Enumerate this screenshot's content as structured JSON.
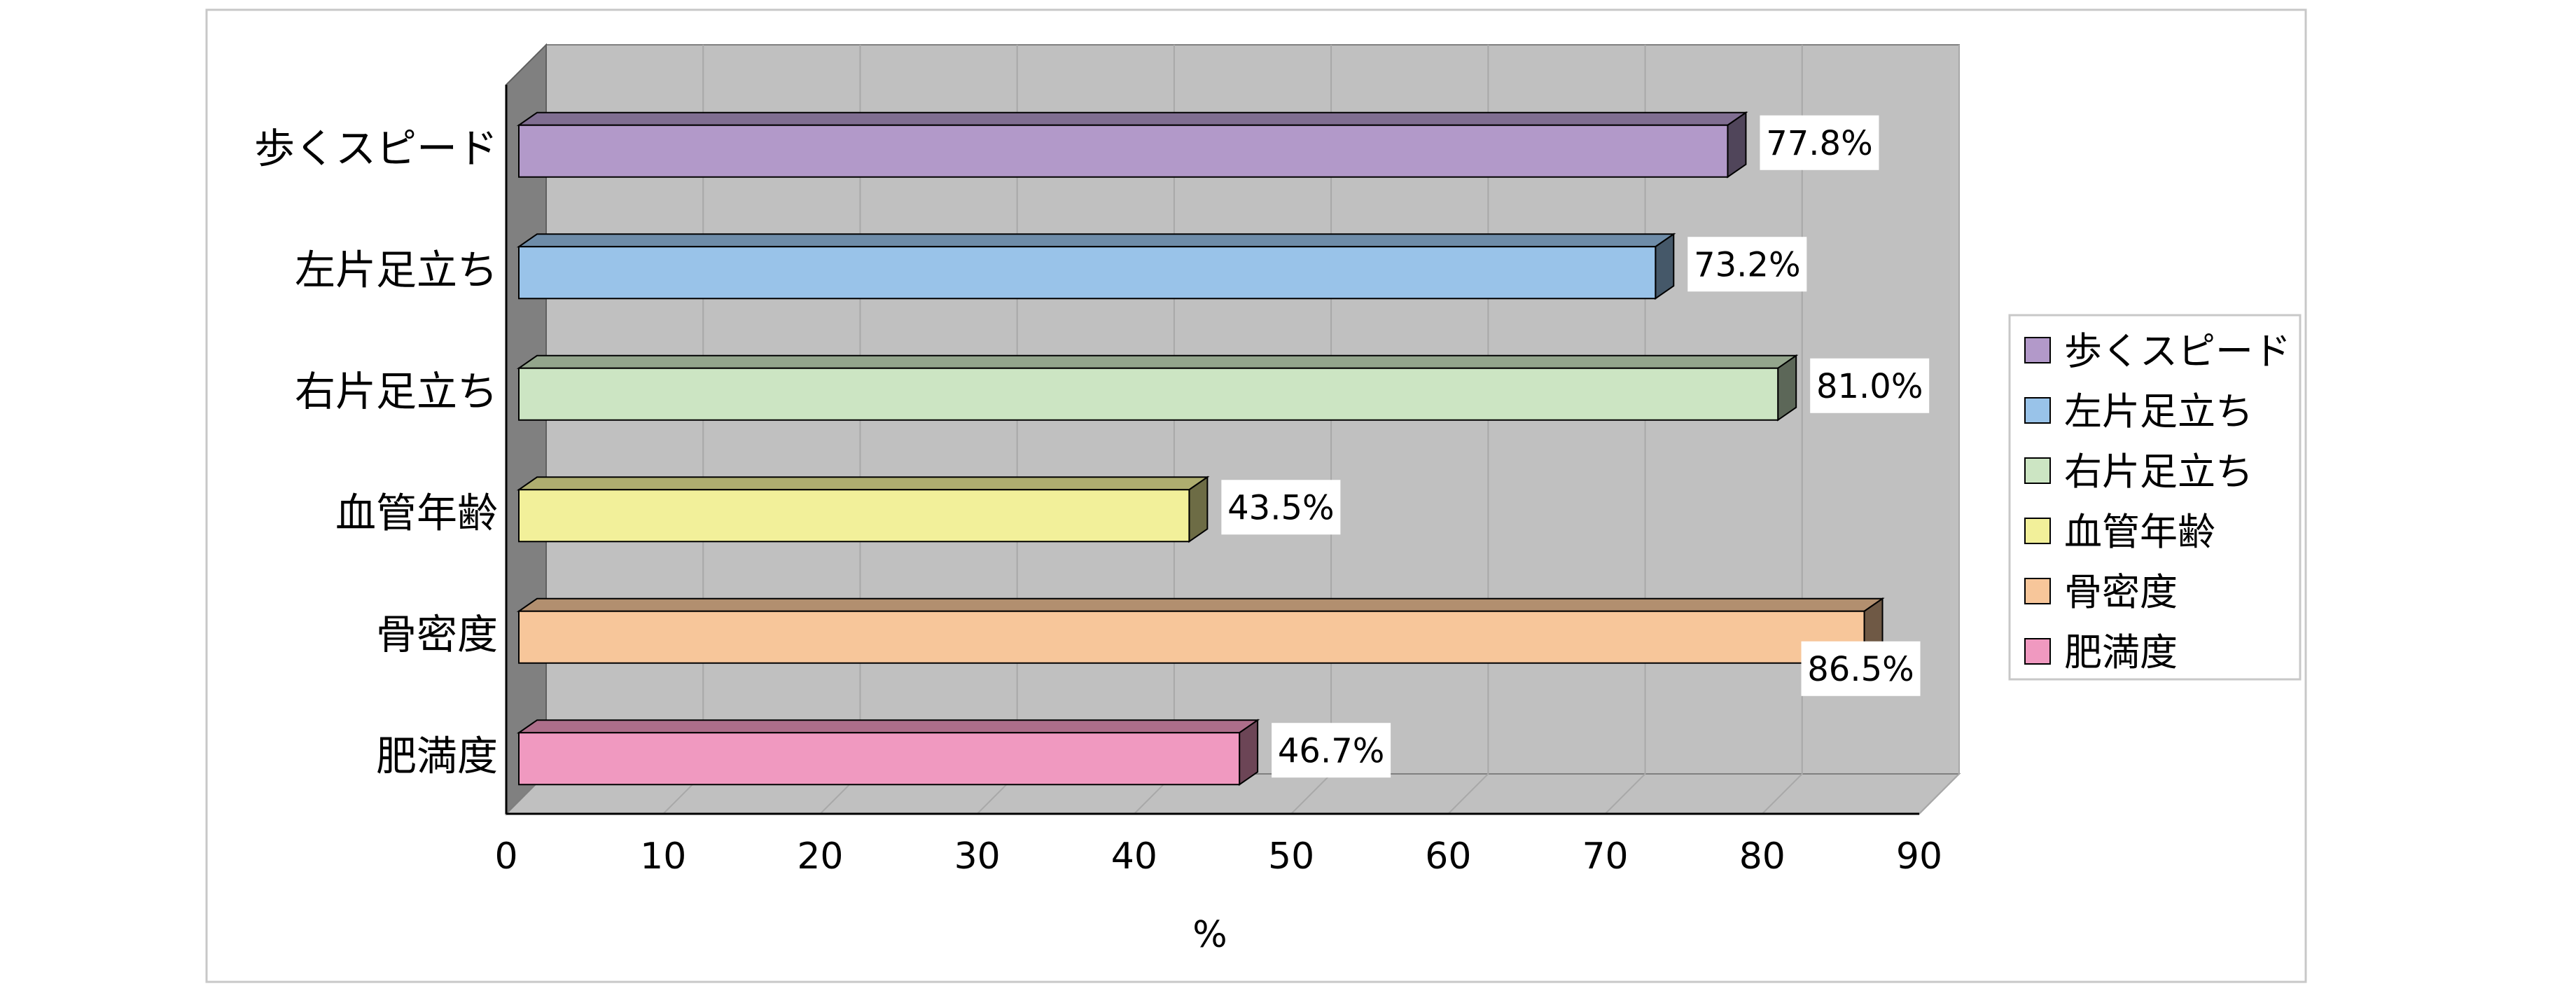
{
  "chart_data": {
    "type": "bar",
    "orientation": "horizontal",
    "style": "3d",
    "categories": [
      "歩くスピード",
      "左片足立ち",
      "右片足立ち",
      "血管年齢",
      "骨密度",
      "肥満度"
    ],
    "values": [
      77.8,
      73.2,
      81.0,
      43.5,
      86.5,
      46.7
    ],
    "data_labels": [
      "77.8%",
      "73.2%",
      "81.0%",
      "43.5%",
      "86.5%",
      "46.7%"
    ],
    "colors": [
      "#b299c9",
      "#99c3e9",
      "#cce5c3",
      "#f2f09a",
      "#f7c69a",
      "#f099c0"
    ],
    "xlabel": "%",
    "x_ticks": [
      "0",
      "10",
      "20",
      "30",
      "40",
      "50",
      "60",
      "70",
      "80",
      "90"
    ],
    "xlim": [
      0,
      90
    ],
    "grid": true,
    "legend": {
      "position": "right",
      "entries": [
        "歩くスピード",
        "左片足立ち",
        "右片足立ち",
        "血管年齢",
        "骨密度",
        "肥満度"
      ]
    },
    "wall_color": "#c0c0c0",
    "side_wall_color": "#808080"
  }
}
